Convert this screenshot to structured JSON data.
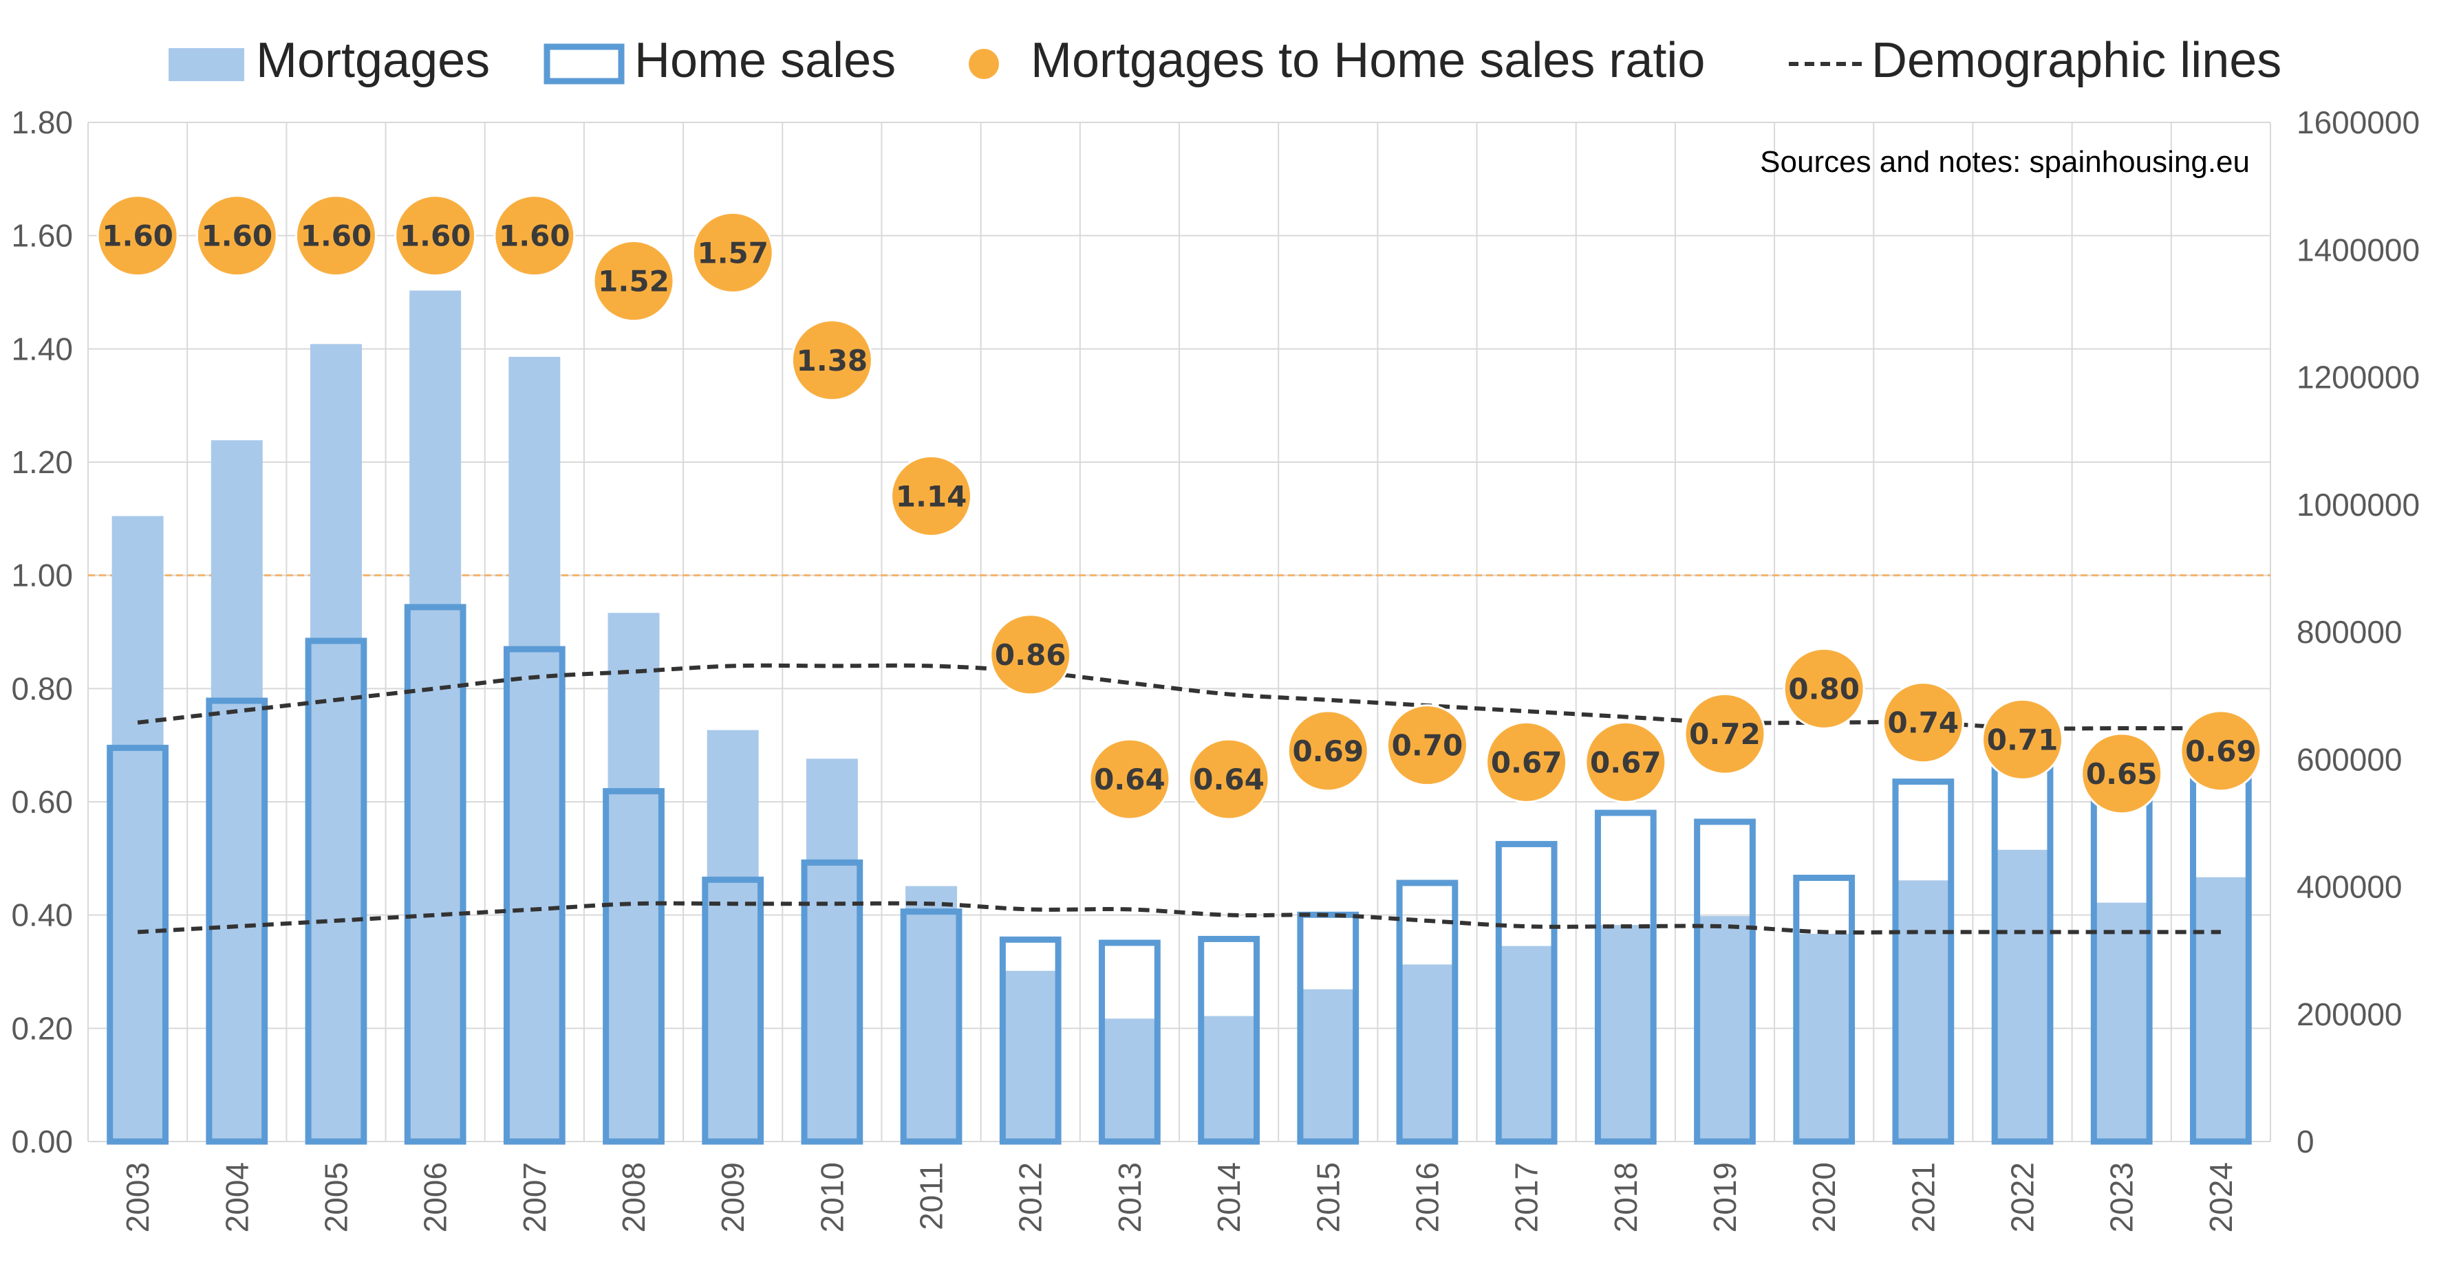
{
  "legend": {
    "mortgages": "Mortgages",
    "home_sales": "Home sales",
    "ratio": "Mortgages to Home sales ratio",
    "demographic": "Demographic lines"
  },
  "note": "Sources and notes: spainhousing.eu",
  "colors": {
    "mortgage_fill": "#a9c9ea",
    "home_sales_stroke": "#5b9bd5",
    "ratio_dot": "#f8ae3f",
    "demographic_line": "#333333",
    "reference_line": "#f4b36b",
    "grid": "#d9d9d9"
  },
  "chart_data": {
    "type": "bar",
    "categories": [
      "2003",
      "2004",
      "2005",
      "2006",
      "2007",
      "2008",
      "2009",
      "2010",
      "2011",
      "2012",
      "2013",
      "2014",
      "2015",
      "2016",
      "2017",
      "2018",
      "2019",
      "2020",
      "2021",
      "2022",
      "2023",
      "2024"
    ],
    "y_left": {
      "min": 0,
      "max": 1.8,
      "step": 0.2,
      "ticks": [
        "0.00",
        "0.20",
        "0.40",
        "0.60",
        "0.80",
        "1.00",
        "1.20",
        "1.40",
        "1.60",
        "1.80"
      ]
    },
    "y_right": {
      "min": 0,
      "max": 1600000,
      "step": 200000,
      "ticks": [
        "0",
        "200000",
        "400000",
        "600000",
        "800000",
        "1000000",
        "1200000",
        "1400000",
        "1600000"
      ]
    },
    "reference_line_left": 1.0,
    "grid": true,
    "legend_position": "top",
    "series": [
      {
        "name": "Mortgages",
        "type": "bar-filled",
        "axis": "right",
        "values": [
          982000,
          1101000,
          1252000,
          1336000,
          1232000,
          830000,
          646000,
          601000,
          401000,
          268000,
          193000,
          197000,
          239000,
          278000,
          307000,
          340000,
          354000,
          326000,
          410000,
          458000,
          375000,
          415000
        ]
      },
      {
        "name": "Home sales",
        "type": "bar-outline",
        "axis": "right",
        "values": [
          618000,
          692000,
          786000,
          839000,
          773000,
          550000,
          411000,
          438000,
          361000,
          317000,
          312000,
          318000,
          356000,
          406000,
          467000,
          516000,
          502000,
          414000,
          565000,
          649000,
          584000,
          642000
        ]
      },
      {
        "name": "Mortgages to Home sales ratio",
        "type": "scatter",
        "axis": "left",
        "values": [
          1.6,
          1.6,
          1.6,
          1.6,
          1.6,
          1.52,
          1.57,
          1.38,
          1.14,
          0.86,
          0.64,
          0.64,
          0.69,
          0.7,
          0.67,
          0.67,
          0.72,
          0.8,
          0.74,
          0.71,
          0.65,
          0.69
        ],
        "labels": [
          "1.60",
          "1.60",
          "1.60",
          "1.60",
          "1.60",
          "1.52",
          "1.57",
          "1.38",
          "1.14",
          "0.86",
          "0.64",
          "0.64",
          "0.69",
          "0.70",
          "0.67",
          "0.67",
          "0.72",
          "0.80",
          "0.74",
          "0.71",
          "0.65",
          "0.69"
        ]
      },
      {
        "name": "Demographic lines",
        "type": "line-dashed",
        "axis": "left",
        "upper": [
          0.74,
          0.76,
          0.78,
          0.8,
          0.82,
          0.83,
          0.84,
          0.84,
          0.84,
          0.83,
          0.81,
          0.79,
          0.78,
          0.77,
          0.76,
          0.75,
          0.74,
          0.74,
          0.74,
          0.73,
          0.73,
          0.73
        ],
        "lower": [
          0.37,
          0.38,
          0.39,
          0.4,
          0.41,
          0.42,
          0.42,
          0.42,
          0.42,
          0.41,
          0.41,
          0.4,
          0.4,
          0.39,
          0.38,
          0.38,
          0.38,
          0.37,
          0.37,
          0.37,
          0.37,
          0.37
        ]
      }
    ]
  }
}
